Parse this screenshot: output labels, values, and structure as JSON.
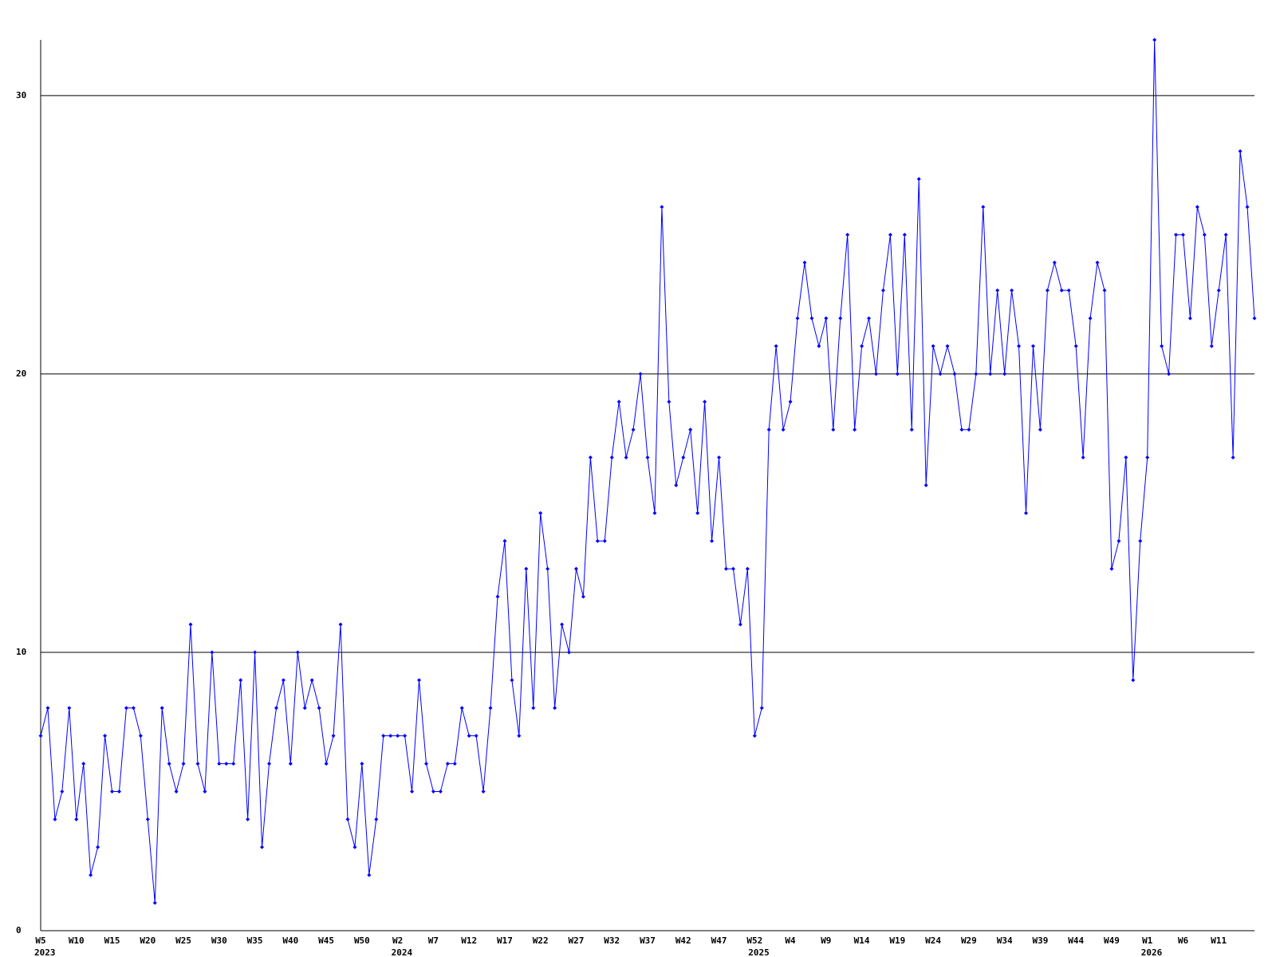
{
  "chart_data": {
    "type": "line",
    "color": "#0000ff",
    "grid": true,
    "ylim": [
      0,
      32
    ],
    "yticks": [
      0,
      10,
      20,
      30
    ],
    "categories": [
      "W5",
      null,
      null,
      null,
      null,
      "W10",
      null,
      null,
      null,
      null,
      "W15",
      null,
      null,
      null,
      null,
      "W20",
      null,
      null,
      null,
      null,
      "W25",
      null,
      null,
      null,
      null,
      "W30",
      null,
      null,
      null,
      null,
      "W35",
      null,
      null,
      null,
      null,
      "W40",
      null,
      null,
      null,
      null,
      "W45",
      null,
      null,
      null,
      null,
      "W50",
      null,
      null,
      null,
      null,
      "W2",
      null,
      null,
      null,
      null,
      "W7",
      null,
      null,
      null,
      null,
      "W12",
      null,
      null,
      null,
      null,
      "W17",
      null,
      null,
      null,
      null,
      "W22",
      null,
      null,
      null,
      null,
      "W27",
      null,
      null,
      null,
      null,
      "W32",
      null,
      null,
      null,
      null,
      "W37",
      null,
      null,
      null,
      null,
      "W42",
      null,
      null,
      null,
      null,
      "W47",
      null,
      null,
      null,
      null,
      "W52",
      null,
      null,
      null,
      null,
      "W4",
      null,
      null,
      null,
      null,
      "W9",
      null,
      null,
      null,
      null,
      "W14",
      null,
      null,
      null,
      null,
      "W19",
      null,
      null,
      null,
      null,
      "W24",
      null,
      null,
      null,
      null,
      "W29",
      null,
      null,
      null,
      null,
      "W34",
      null,
      null,
      null,
      null,
      "W39",
      null,
      null,
      null,
      null,
      "W44",
      null,
      null,
      null,
      null,
      "W49",
      null,
      null,
      null,
      null,
      "W1",
      null,
      null,
      null,
      null,
      "W6",
      null,
      null,
      null,
      null,
      "W11",
      null,
      null,
      null,
      null,
      null
    ],
    "year_labels": [
      "2023",
      null,
      null,
      null,
      null,
      null,
      null,
      null,
      null,
      null,
      null,
      null,
      null,
      null,
      null,
      null,
      null,
      null,
      null,
      null,
      null,
      null,
      null,
      null,
      null,
      null,
      null,
      null,
      null,
      null,
      null,
      null,
      null,
      null,
      null,
      null,
      null,
      null,
      null,
      null,
      null,
      null,
      null,
      null,
      null,
      null,
      null,
      null,
      null,
      null,
      "2024",
      null,
      null,
      null,
      null,
      null,
      null,
      null,
      null,
      null,
      null,
      null,
      null,
      null,
      null,
      null,
      null,
      null,
      null,
      null,
      null,
      null,
      null,
      null,
      null,
      null,
      null,
      null,
      null,
      null,
      null,
      null,
      null,
      null,
      null,
      null,
      null,
      null,
      null,
      null,
      null,
      null,
      null,
      null,
      null,
      null,
      null,
      null,
      null,
      null,
      "2025",
      null,
      null,
      null,
      null,
      null,
      null,
      null,
      null,
      null,
      null,
      null,
      null,
      null,
      null,
      null,
      null,
      null,
      null,
      null,
      null,
      null,
      null,
      null,
      null,
      null,
      null,
      null,
      null,
      null,
      null,
      null,
      null,
      null,
      null,
      null,
      null,
      null,
      null,
      null,
      null,
      null,
      null,
      null,
      null,
      null,
      null,
      null,
      null,
      null,
      null,
      null,
      null,
      null,
      null,
      "2026",
      null,
      null,
      null,
      null,
      null,
      null,
      null,
      null,
      null,
      null,
      null,
      null,
      null,
      null,
      null
    ],
    "values": [
      7,
      8,
      4,
      5,
      8,
      4,
      6,
      2,
      3,
      7,
      5,
      5,
      8,
      8,
      7,
      4,
      1,
      8,
      6,
      5,
      6,
      11,
      6,
      5,
      10,
      6,
      6,
      6,
      9,
      4,
      10,
      3,
      6,
      8,
      9,
      6,
      10,
      8,
      9,
      8,
      6,
      7,
      11,
      4,
      3,
      6,
      2,
      4,
      7,
      7,
      7,
      7,
      5,
      9,
      6,
      5,
      5,
      6,
      6,
      8,
      7,
      7,
      5,
      8,
      12,
      14,
      9,
      7,
      13,
      8,
      15,
      13,
      8,
      11,
      10,
      13,
      12,
      17,
      14,
      14,
      17,
      19,
      17,
      18,
      20,
      17,
      15,
      26,
      19,
      16,
      17,
      18,
      15,
      19,
      14,
      17,
      13,
      13,
      11,
      13,
      7,
      8,
      18,
      21,
      18,
      19,
      22,
      24,
      22,
      21,
      22,
      18,
      22,
      25,
      18,
      21,
      22,
      20,
      23,
      25,
      20,
      25,
      18,
      27,
      16,
      21,
      20,
      21,
      20,
      18,
      18,
      20,
      26,
      20,
      23,
      20,
      23,
      21,
      15,
      21,
      18,
      23,
      24,
      23,
      23,
      21,
      17,
      22,
      24,
      23,
      13,
      14,
      17,
      9,
      14,
      17,
      32,
      21,
      20,
      25,
      25,
      22,
      26,
      25,
      21,
      23,
      25,
      17,
      28,
      26,
      22
    ]
  }
}
